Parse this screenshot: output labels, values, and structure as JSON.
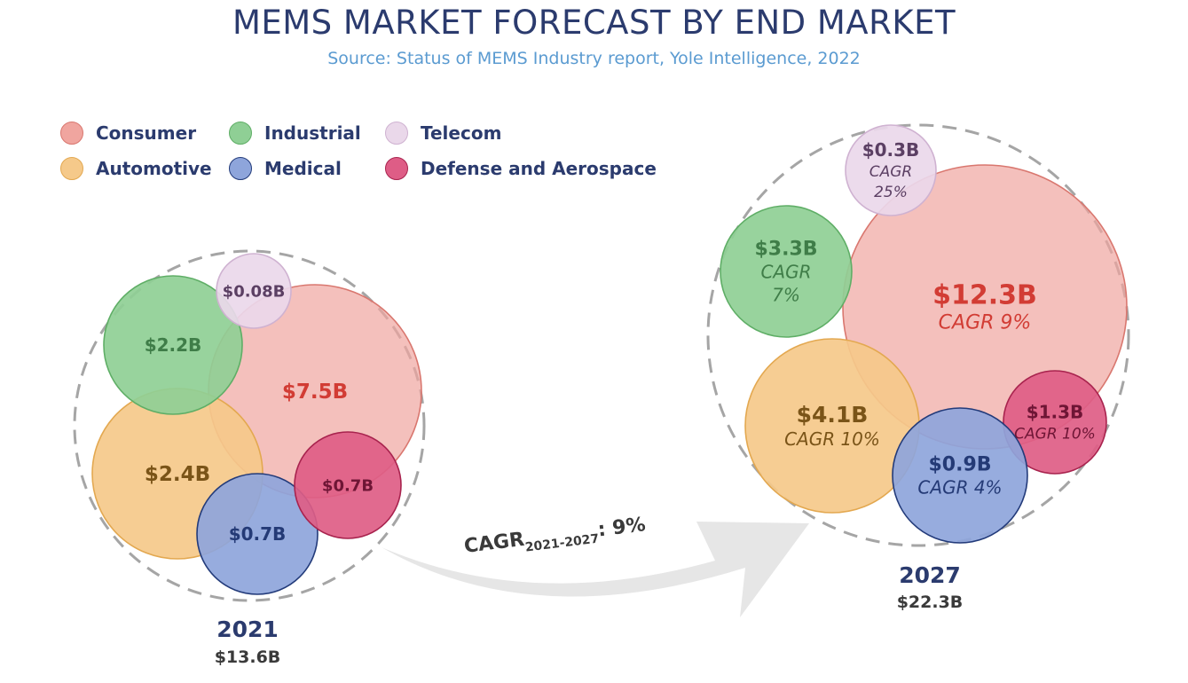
{
  "header": {
    "title": "MEMS MARKET FORECAST BY END MARKET",
    "subtitle": "Source: Status of MEMS Industry report, Yole Intelligence, 2022"
  },
  "legend": [
    {
      "label": "Consumer",
      "fill": "#f0a59f",
      "stroke": "#d9776f"
    },
    {
      "label": "Industrial",
      "fill": "#8fcf95",
      "stroke": "#5fae66"
    },
    {
      "label": "Telecom",
      "fill": "#ead8ea",
      "stroke": "#cfb2d1"
    },
    {
      "label": "Automotive",
      "fill": "#f5c98a",
      "stroke": "#e3a850"
    },
    {
      "label": "Medical",
      "fill": "#8ea5db",
      "stroke": "#233b7a"
    },
    {
      "label": "Defense and Aerospace",
      "fill": "#de5d86",
      "stroke": "#a8234e"
    }
  ],
  "chart_data": {
    "type": "bubble",
    "title": "MEMS MARKET FORECAST BY END MARKET",
    "subtitle": "Source: Status of MEMS Industry report, Yole Intelligence, 2022",
    "growth_label": {
      "prefix": "CAGR",
      "sub": "2021-2027",
      "suffix": ": 9%"
    },
    "groups": [
      {
        "year": "2021",
        "total": "$13.6B",
        "segments": [
          {
            "market": "Consumer",
            "value": 7.5,
            "label": "$7.5B"
          },
          {
            "market": "Automotive",
            "value": 2.4,
            "label": "$2.4B"
          },
          {
            "market": "Industrial",
            "value": 2.2,
            "label": "$2.2B"
          },
          {
            "market": "Medical",
            "value": 0.7,
            "label": "$0.7B"
          },
          {
            "market": "Defense and Aerospace",
            "value": 0.7,
            "label": "$0.7B"
          },
          {
            "market": "Telecom",
            "value": 0.08,
            "label": "$0.08B"
          }
        ]
      },
      {
        "year": "2027",
        "total": "$22.3B",
        "segments": [
          {
            "market": "Consumer",
            "value": 12.3,
            "label": "$12.3B",
            "cagr": [
              "CAGR 9%"
            ]
          },
          {
            "market": "Automotive",
            "value": 4.1,
            "label": "$4.1B",
            "cagr": [
              "CAGR 10%"
            ]
          },
          {
            "market": "Industrial",
            "value": 3.3,
            "label": "$3.3B",
            "cagr": [
              "CAGR",
              "7%"
            ]
          },
          {
            "market": "Defense and Aerospace",
            "value": 1.3,
            "label": "$1.3B",
            "cagr": [
              "CAGR 10%"
            ]
          },
          {
            "market": "Medical",
            "value": 0.9,
            "label": "$0.9B",
            "cagr": [
              "CAGR 4%"
            ]
          },
          {
            "market": "Telecom",
            "value": 0.3,
            "label": "$0.3B",
            "cagr": [
              "CAGR",
              "25%"
            ]
          }
        ]
      }
    ]
  },
  "theme": {
    "navy": "#2b3b6e",
    "dark_label": "#3a3a3a",
    "dashed_outline": "#a5a5a5",
    "arrow": "#e6e6e6",
    "label_colors": {
      "Consumer": "#d23c34",
      "Automotive": "#7a5418",
      "Industrial": "#3f7d48",
      "Medical": "#243a76",
      "Defense and Aerospace": "#6e1535",
      "Telecom": "#5b3f63"
    }
  }
}
